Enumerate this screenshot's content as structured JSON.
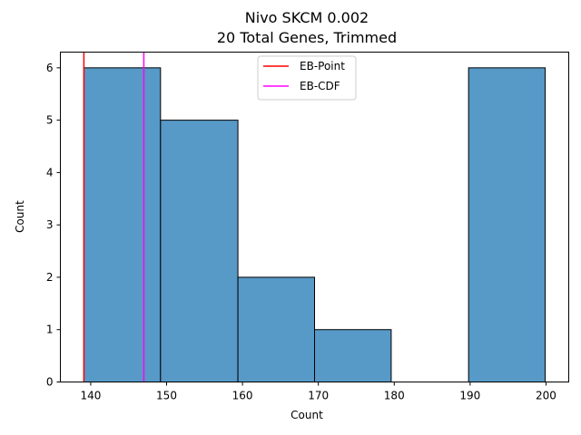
{
  "chart_data": {
    "type": "bar",
    "title": "Nivo SKCM 0.002",
    "subtitle": "20 Total Genes, Trimmed",
    "xlabel": "Count",
    "ylabel": "Count",
    "xlim": [
      136,
      203
    ],
    "ylim": [
      0,
      6.3
    ],
    "xticks": [
      140,
      150,
      160,
      170,
      180,
      190,
      200
    ],
    "yticks": [
      0,
      1,
      2,
      3,
      4,
      5,
      6
    ],
    "bins": [
      {
        "x0": 139.1,
        "x1": 149.2,
        "count": 6
      },
      {
        "x0": 149.2,
        "x1": 159.4,
        "count": 5
      },
      {
        "x0": 159.4,
        "x1": 169.5,
        "count": 2
      },
      {
        "x0": 169.5,
        "x1": 179.6,
        "count": 1
      },
      {
        "x0": 179.6,
        "x1": 189.8,
        "count": 0
      },
      {
        "x0": 189.8,
        "x1": 199.9,
        "count": 6
      }
    ],
    "bar_color": "#5799c7",
    "vlines": [
      {
        "name": "EB-Point",
        "x": 139.1,
        "color": "#ff0000"
      },
      {
        "name": "EB-CDF",
        "x": 147.0,
        "color": "#ff00ff"
      }
    ],
    "legend_position": "top-center",
    "grid": false
  }
}
